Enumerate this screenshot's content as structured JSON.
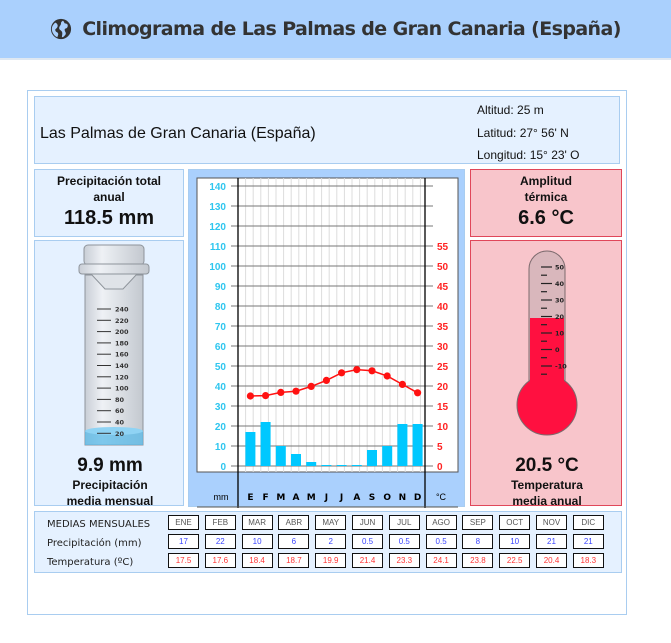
{
  "header": {
    "title": "Climograma de Las Palmas de Gran Canaria (España)",
    "icon": "globe-icon"
  },
  "location": {
    "name": "Las Palmas de Gran Canaria (España)",
    "altitude": "Altitud: 25 m",
    "latitude": "Latitud: 27° 56' N",
    "longitude": "Longitud:  15° 23' O"
  },
  "precip_total": {
    "label1": "Precipitación total",
    "label2": "anual",
    "value": "118.5 mm"
  },
  "precip_mean": {
    "value": "9.9 mm",
    "label1": "Precipitación",
    "label2": "media mensual",
    "gauge_ticks": [
      "240",
      "220",
      "200",
      "180",
      "160",
      "140",
      "120",
      "100",
      "80",
      "60",
      "40",
      "20"
    ]
  },
  "amplitude": {
    "label1": "Amplitud",
    "label2": "térmica",
    "value": "6.6 °C"
  },
  "temp_mean": {
    "value": "20.5 °C",
    "label1": "Temperatura",
    "label2": "media anual",
    "thermo_ticks": [
      "50",
      "40",
      "30",
      "20",
      "10",
      "0",
      "-10"
    ]
  },
  "chart": {
    "left_unit": "mm",
    "right_unit": "°C",
    "month_letters": [
      "E",
      "F",
      "M",
      "A",
      "M",
      "J",
      "J",
      "A",
      "S",
      "O",
      "N",
      "D"
    ],
    "left_ticks": [
      140,
      130,
      120,
      110,
      100,
      90,
      80,
      70,
      60,
      50,
      40,
      30,
      20,
      10,
      0
    ],
    "right_ticks": [
      55,
      50,
      45,
      40,
      35,
      30,
      25,
      20,
      15,
      10,
      5,
      0
    ],
    "bar_color": "#00c8ff",
    "line_color": "#ff1111",
    "left_tick_color": "#2ec6ef",
    "right_tick_color": "#ff2222"
  },
  "chart_data": {
    "type": "bar+line",
    "title": "Climograma de Las Palmas de Gran Canaria (España)",
    "categories": [
      "E",
      "F",
      "M",
      "A",
      "M",
      "J",
      "J",
      "A",
      "S",
      "O",
      "N",
      "D"
    ],
    "series": [
      {
        "name": "Precipitación (mm)",
        "type": "bar",
        "axis": "left",
        "values": [
          17,
          22,
          10,
          6,
          2,
          0.5,
          0.5,
          0.5,
          8,
          10,
          21,
          21
        ]
      },
      {
        "name": "Temperatura (ºC)",
        "type": "line",
        "axis": "right",
        "values": [
          17.5,
          17.6,
          18.4,
          18.7,
          19.9,
          21.4,
          23.3,
          24.1,
          23.8,
          22.5,
          20.4,
          18.3
        ]
      }
    ],
    "xlabel": "",
    "ylabel_left": "mm",
    "ylabel_right": "°C",
    "ylim_left": [
      0,
      140
    ],
    "ylim_right": [
      0,
      55
    ],
    "grid": true,
    "legend": "none"
  },
  "table": {
    "title": "MEDIAS MENSUALES",
    "precip_label": "Precipitación (mm)",
    "temp_label": "Temperatura (ºC)",
    "months": [
      "ENE",
      "FEB",
      "MAR",
      "ABR",
      "MAY",
      "JUN",
      "JUL",
      "AGO",
      "SEP",
      "OCT",
      "NOV",
      "DIC"
    ],
    "precip": [
      "17",
      "22",
      "10",
      "6",
      "2",
      "0.5",
      "0.5",
      "0.5",
      "8",
      "10",
      "21",
      "21"
    ],
    "temp": [
      "17.5",
      "17.6",
      "18.4",
      "18.7",
      "19.9",
      "21.4",
      "23.3",
      "24.1",
      "23.8",
      "22.5",
      "20.4",
      "18.3"
    ]
  }
}
